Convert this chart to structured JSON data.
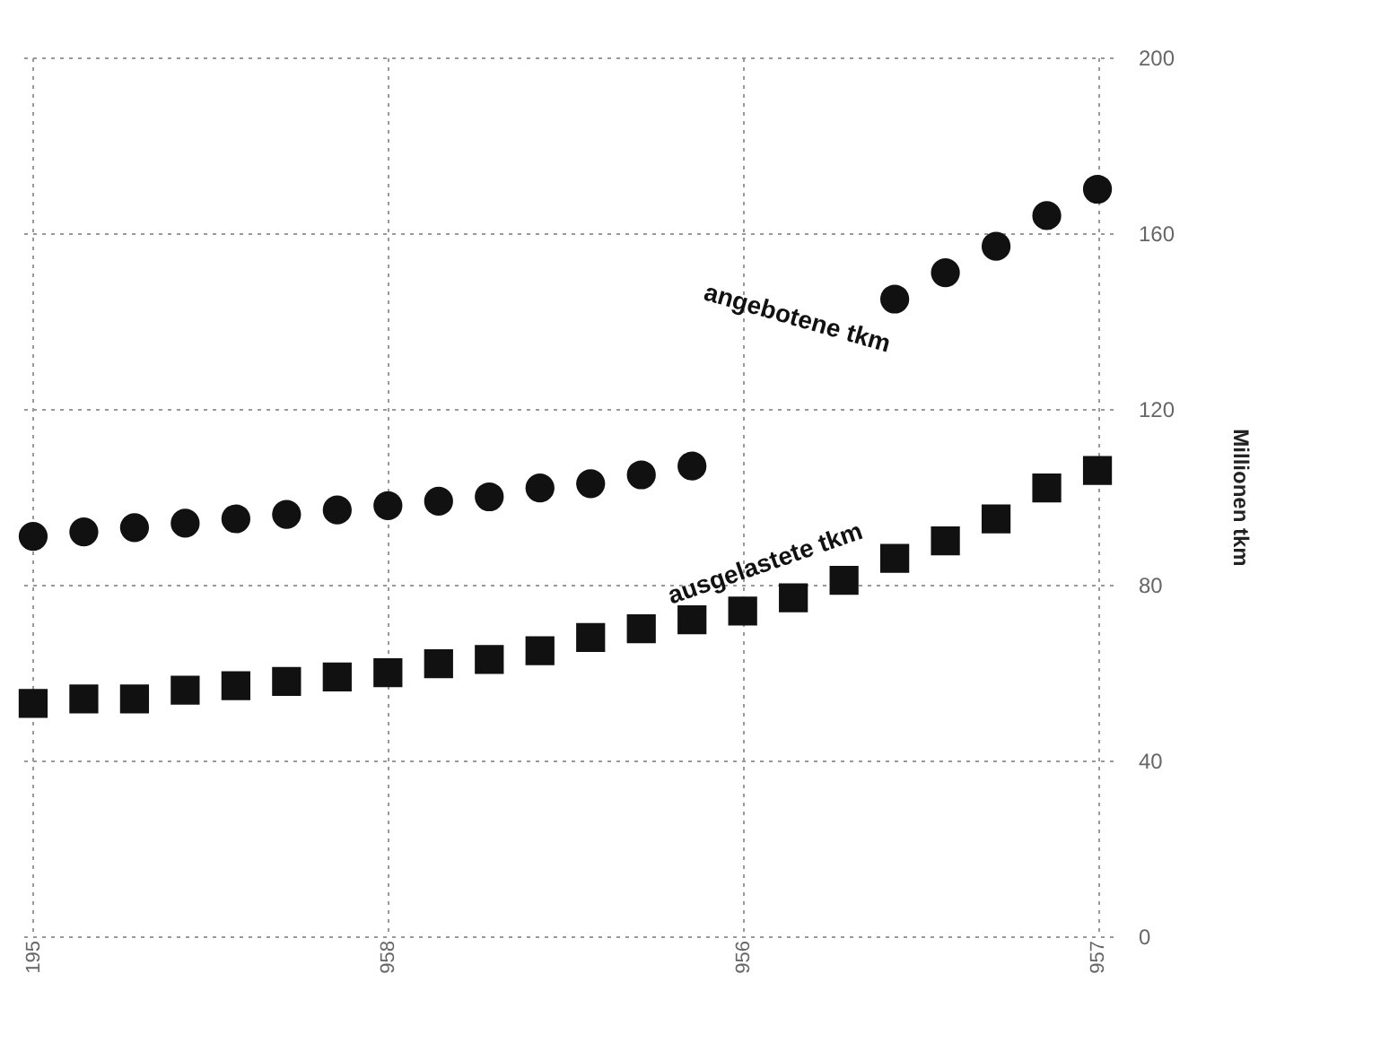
{
  "chart_data": {
    "type": "scatter",
    "ylabel": "Millionen tkm",
    "categories": [
      "195",
      null,
      null,
      null,
      null,
      null,
      null,
      "958",
      null,
      null,
      null,
      null,
      null,
      null,
      "956",
      null,
      null,
      null,
      null,
      null,
      null,
      "957"
    ],
    "series": [
      {
        "name": "angebotene tkm",
        "color": "#111111",
        "marker": "circle",
        "values": [
          91,
          92,
          93,
          94,
          95,
          96,
          97,
          98,
          99,
          100,
          102,
          103,
          105,
          107,
          null,
          null,
          null,
          145,
          151,
          157,
          164,
          170
        ]
      },
      {
        "name": "ausgelastete tkm",
        "color": "#111111",
        "marker": "square",
        "values": [
          53,
          54,
          54,
          56,
          57,
          58,
          59,
          60,
          62,
          63,
          65,
          68,
          70,
          72,
          74,
          77,
          81,
          86,
          90,
          95,
          102,
          106
        ]
      }
    ],
    "ylim": [
      0,
      200
    ],
    "yticks": [
      0,
      40,
      80,
      120,
      160,
      200
    ],
    "grid": true
  }
}
